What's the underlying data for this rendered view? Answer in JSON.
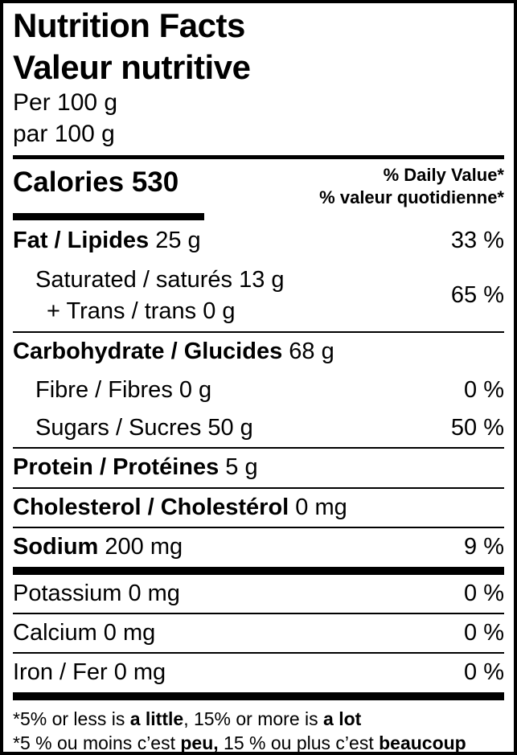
{
  "colors": {
    "text": "#000000",
    "background": "#ffffff"
  },
  "header": {
    "title_en": "Nutrition Facts",
    "title_fr": "Valeur nutritive",
    "serving_en": "Per 100 g",
    "serving_fr": "par 100 g"
  },
  "calories": {
    "label": "Calories 530",
    "dv_header_en": "% Daily Value*",
    "dv_header_fr": "% valeur quotidienne*"
  },
  "rows": [
    {
      "bold": "Fat / Lipides",
      "rest": " 25 g",
      "dv": "33 %"
    },
    {
      "line1": "Saturated / saturés 13 g",
      "line2": "+ Trans / trans 0 g",
      "dv": "65 %"
    },
    {
      "bold": "Carbohydrate / Glucides",
      "rest": " 68 g",
      "dv": ""
    },
    {
      "bold": "",
      "rest": "Fibre / Fibres 0 g",
      "dv": "0 %"
    },
    {
      "bold": "",
      "rest": "Sugars / Sucres 50 g",
      "dv": "50 %"
    },
    {
      "bold": "Protein / Protéines",
      "rest": " 5 g",
      "dv": ""
    },
    {
      "bold": "Cholesterol / Cholestérol",
      "rest": " 0 mg",
      "dv": ""
    },
    {
      "bold": "Sodium",
      "rest": " 200 mg",
      "dv": "9 %"
    },
    {
      "bold": "",
      "rest": "Potassium 0 mg",
      "dv": "0 %"
    },
    {
      "bold": "",
      "rest": "Calcium 0 mg",
      "dv": "0 %"
    },
    {
      "bold": "",
      "rest": "Iron / Fer 0 mg",
      "dv": "0 %"
    }
  ],
  "footnotes": {
    "en": {
      "pre": "*5% or less is ",
      "bold1": "a little",
      "mid": ", 15% or more is ",
      "bold2": "a lot"
    },
    "fr": {
      "pre": "*5 % ou moins c’est ",
      "bold1": "peu,",
      "mid": " 15 % ou plus c’est ",
      "bold2": "beaucoup"
    }
  }
}
